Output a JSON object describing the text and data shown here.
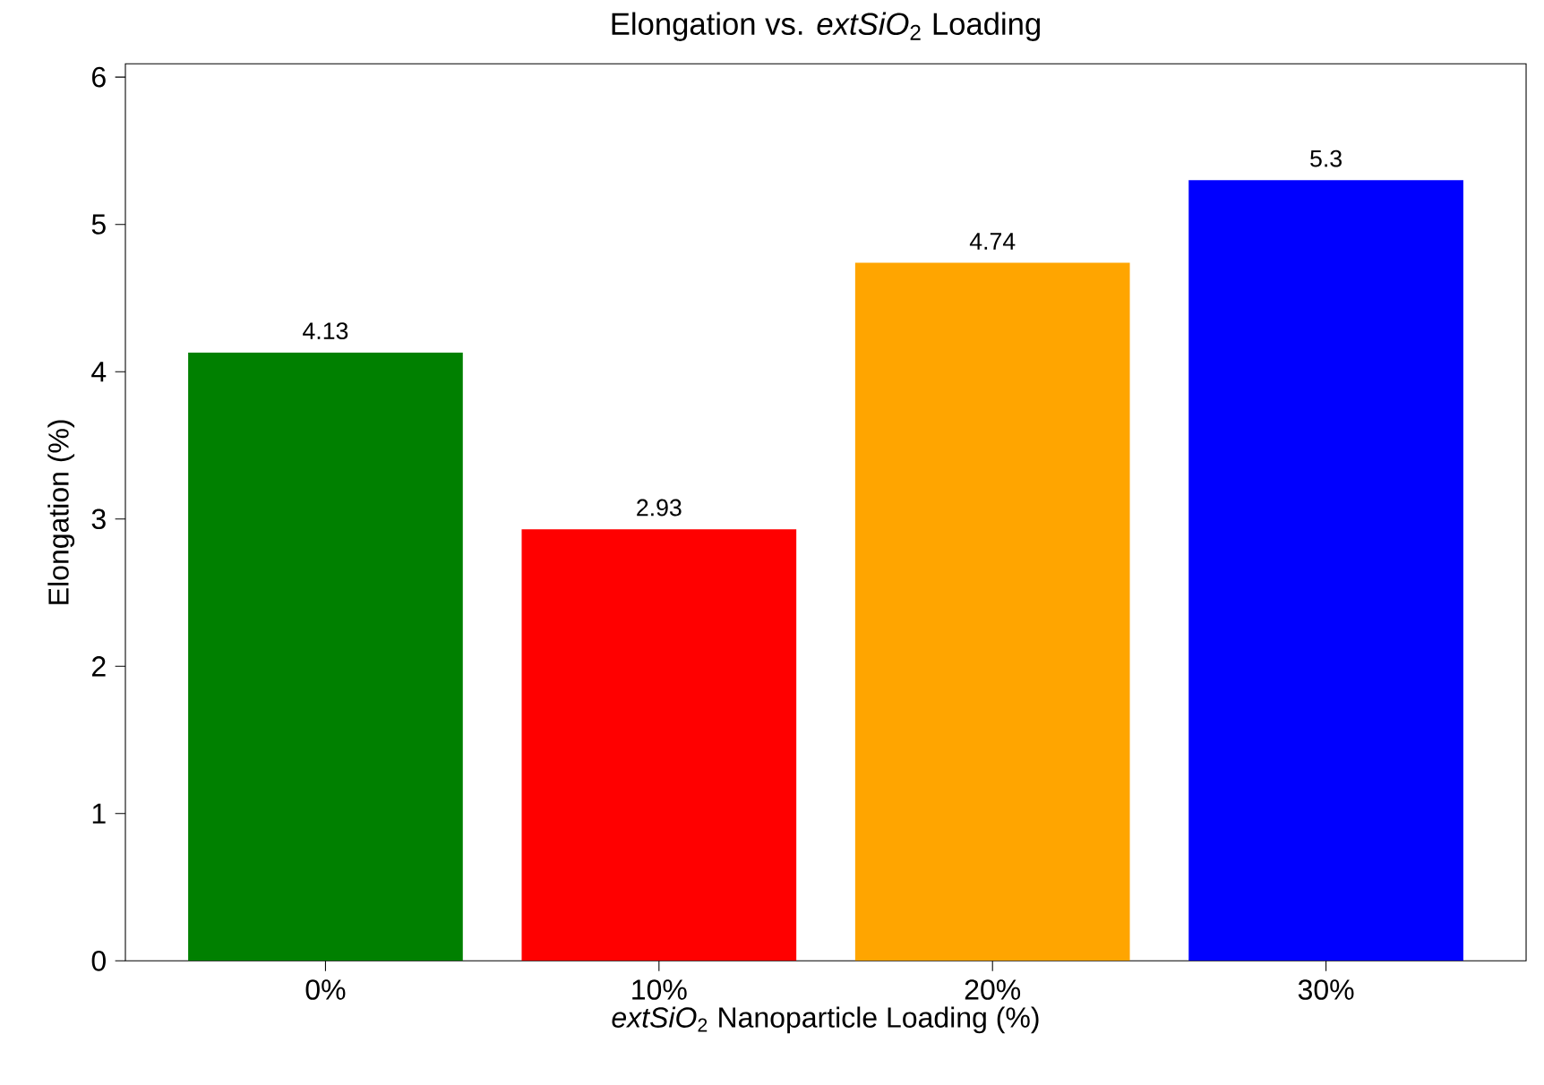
{
  "chart_data": {
    "type": "bar",
    "title": "Elongation vs. *extSiO*$_{2}$ Loading",
    "xlabel": "*extSiO*$_{2}$ Nanoparticle Loading (%)",
    "ylabel": "Elongation (%)",
    "categories": [
      "0%",
      "10%",
      "20%",
      "30%"
    ],
    "values": [
      4.13,
      2.93,
      4.74,
      5.3
    ],
    "colors": [
      "#008000",
      "#ff0000",
      "#ffa500",
      "#0000ff"
    ],
    "ylim": [
      0,
      6.09
    ],
    "yticks": [
      0,
      1,
      2,
      3,
      4,
      5,
      6
    ],
    "data_labels": true
  }
}
